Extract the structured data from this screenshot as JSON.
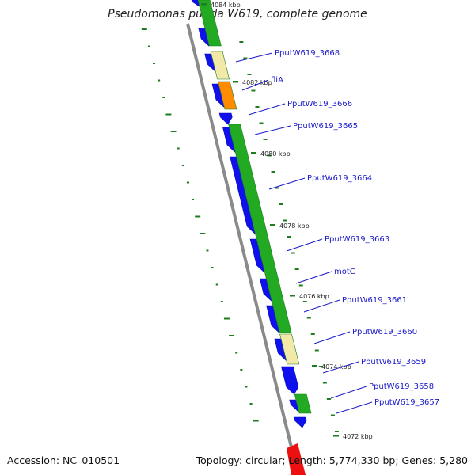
{
  "title": "Pseudomonas putida W619, complete genome",
  "footer": {
    "accession": "Accession: NC_010501",
    "topology": "Topology: circular; Length: 5,774,330 bp; Genes: 5,280"
  },
  "colors": {
    "forward_cds": "#1010ee",
    "reverse_cds": "#22aa22",
    "reverse_cds_dark": "#1e7d1e",
    "pale": "#f2e8a8",
    "orange": "#ff8c00",
    "backbone": "#8a8a8a",
    "label_line": "#1a1ac8",
    "tick": "#1e7d1e"
  },
  "kbp_ticks": [
    "4084 kbp",
    "4082 kbp",
    "4080 kbp",
    "4078 kbp",
    "4076 kbp",
    "4074 kbp",
    "4072 kbp"
  ],
  "gene_labels": [
    "PputW619_3668",
    "fliA",
    "PputW619_3666",
    "PputW619_3665",
    "PputW619_3664",
    "PputW619_3663",
    "motC",
    "PputW619_3661",
    "PputW619_3660",
    "PputW619_3659",
    "PputW619_3658",
    "PputW619_3657"
  ]
}
